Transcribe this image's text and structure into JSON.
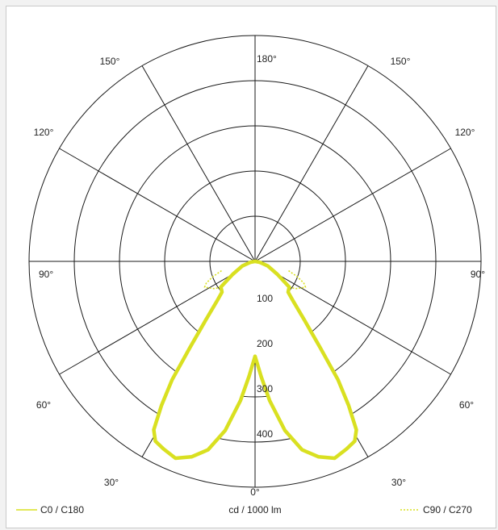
{
  "chart_data": {
    "type": "polar",
    "title": "",
    "unit_label": "cd / 1000 lm",
    "radial_ticks": [
      100,
      200,
      300,
      400,
      500
    ],
    "radial_tick_labels": [
      "100",
      "200",
      "300",
      "400"
    ],
    "angle_labels": [
      {
        "angle": 0,
        "text": "0°"
      },
      {
        "angle": 30,
        "text": "30°"
      },
      {
        "angle": -30,
        "text": "30°"
      },
      {
        "angle": 60,
        "text": "60°"
      },
      {
        "angle": -60,
        "text": "60°"
      },
      {
        "angle": 90,
        "text": "90°"
      },
      {
        "angle": -90,
        "text": "90°"
      },
      {
        "angle": 120,
        "text": "120°"
      },
      {
        "angle": -120,
        "text": "120°"
      },
      {
        "angle": 150,
        "text": "150°"
      },
      {
        "angle": -150,
        "text": "150°"
      },
      {
        "angle": 180,
        "text": "180°"
      }
    ],
    "series": [
      {
        "name": "C0 / C180",
        "color": "#d9e021",
        "style": "solid",
        "points": [
          [
            -90,
            0
          ],
          [
            -80,
            10
          ],
          [
            -70,
            30
          ],
          [
            -60,
            57
          ],
          [
            -55,
            80
          ],
          [
            -53,
            95
          ],
          [
            -50,
            97
          ],
          [
            -47,
            100
          ],
          [
            -44,
            120
          ],
          [
            -40,
            170
          ],
          [
            -37,
            240
          ],
          [
            -35,
            320
          ],
          [
            -33,
            380
          ],
          [
            -31,
            435
          ],
          [
            -29,
            455
          ],
          [
            -26,
            462
          ],
          [
            -22,
            470
          ],
          [
            -18,
            455
          ],
          [
            -14,
            430
          ],
          [
            -10,
            380
          ],
          [
            -6,
            310
          ],
          [
            -3,
            255
          ],
          [
            0,
            210
          ],
          [
            3,
            255
          ],
          [
            6,
            310
          ],
          [
            10,
            380
          ],
          [
            14,
            430
          ],
          [
            18,
            455
          ],
          [
            22,
            470
          ],
          [
            26,
            462
          ],
          [
            29,
            455
          ],
          [
            31,
            435
          ],
          [
            33,
            380
          ],
          [
            35,
            320
          ],
          [
            37,
            240
          ],
          [
            40,
            170
          ],
          [
            44,
            120
          ],
          [
            47,
            100
          ],
          [
            50,
            97
          ],
          [
            53,
            95
          ],
          [
            55,
            80
          ],
          [
            60,
            57
          ],
          [
            70,
            30
          ],
          [
            80,
            10
          ],
          [
            90,
            0
          ]
        ]
      },
      {
        "name": "C90 / C270",
        "color": "#d9e021",
        "style": "dotted",
        "points": [
          [
            -53,
            95
          ],
          [
            -56,
            108
          ],
          [
            -60,
            118
          ],
          [
            -63,
            125
          ],
          [
            -66,
            118
          ],
          [
            -70,
            100
          ],
          [
            -75,
            75
          ]
        ],
        "mirrored": true
      }
    ],
    "legend": [
      {
        "label": "C0 / C180",
        "style": "solid",
        "placement": "bottom-left"
      },
      {
        "label": "C90 / C270",
        "style": "dotted",
        "placement": "bottom-right"
      }
    ],
    "grid": true
  }
}
